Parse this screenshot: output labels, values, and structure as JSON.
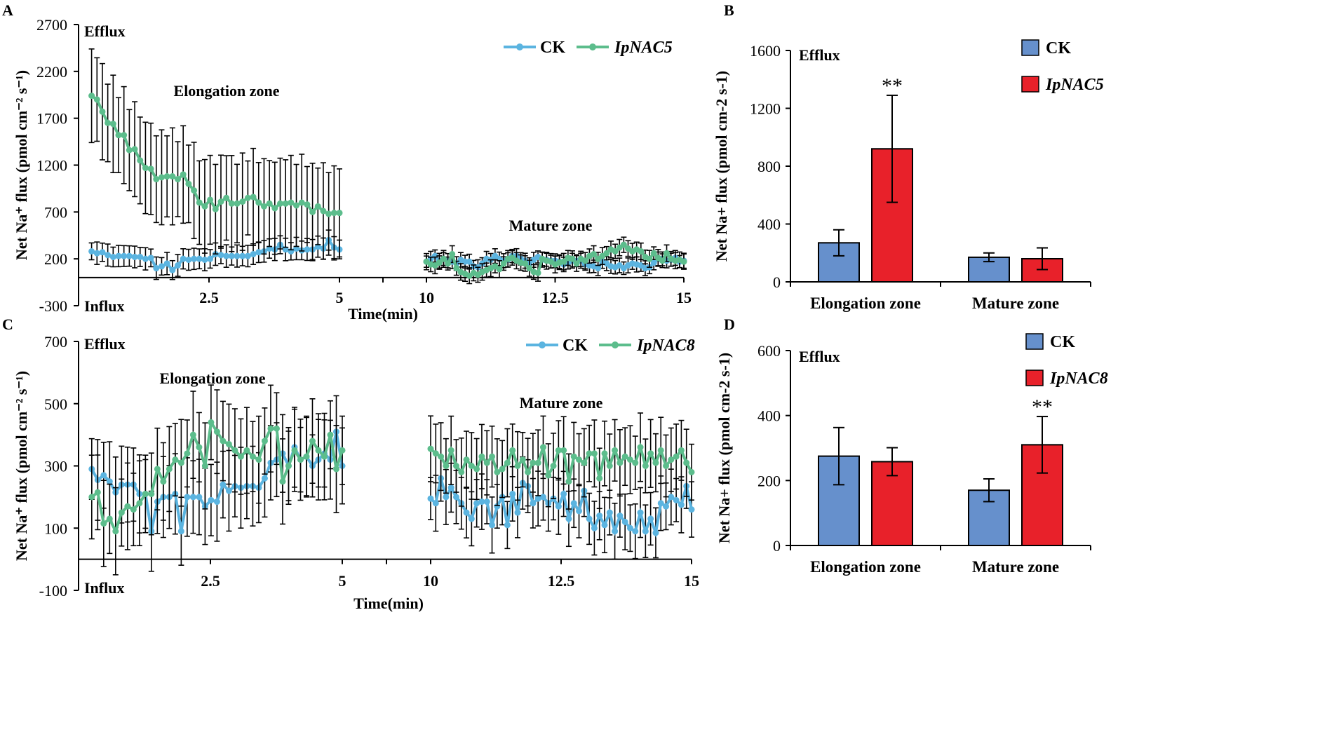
{
  "colors": {
    "ck": "#5bb4e0",
    "ipnac": "#5cbd8c",
    "bar_ck": "#6690cc",
    "bar_ipnac": "#e8212a"
  },
  "panel_labels": {
    "a": "A",
    "b": "B",
    "c": "C",
    "d": "D"
  },
  "chart_data": [
    {
      "id": "A",
      "type": "line",
      "title": "",
      "ylabel": "Net Na⁺ flux (pmol cm⁻² s⁻¹)",
      "xlabel": "Time(min)",
      "ylim": [
        -300,
        2700
      ],
      "yticks": [
        "2700",
        "2200",
        "1700",
        "1200",
        "700",
        "200",
        "-300"
      ],
      "ytick_values": [
        2700,
        2200,
        1700,
        1200,
        700,
        200,
        -300
      ],
      "xtick_labels": [
        "2.5",
        "5",
        "10",
        "12.5",
        "15"
      ],
      "xtick_values": [
        2.5,
        5,
        10,
        12.5,
        15
      ],
      "xrange": [
        0,
        15
      ],
      "efflux_label": "Efflux",
      "influx_label": "Influx",
      "annotations": [
        "Elongation zone",
        "Mature zone"
      ],
      "legend": [
        "CK",
        "IpNAC5"
      ],
      "series": [
        {
          "name": "CK",
          "elong_values": [
            280,
            260,
            270,
            240,
            220,
            230,
            230,
            230,
            220,
            220,
            200,
            210,
            100,
            120,
            150,
            80,
            130,
            200,
            190,
            200,
            200,
            190,
            200,
            250,
            240,
            230,
            230,
            230,
            230,
            230,
            250,
            270,
            280,
            310,
            300,
            350,
            300,
            280,
            310,
            290,
            300,
            300,
            330,
            310,
            400,
            320,
            300
          ],
          "elong_err": 120,
          "mature_values": [
            170,
            200,
            230,
            180,
            200,
            180,
            170,
            150,
            190,
            170,
            170,
            120,
            110,
            150,
            200,
            190,
            230,
            200,
            180,
            190,
            230,
            230,
            200,
            180,
            150,
            190,
            220,
            190,
            190,
            180,
            180,
            170,
            140,
            160,
            180,
            180,
            180,
            140,
            130,
            120,
            100,
            170,
            150,
            120,
            110,
            130,
            100,
            130,
            150,
            140,
            130,
            100,
            110,
            160,
            200,
            200,
            180,
            190,
            210,
            170,
            180
          ],
          "mature_err": 80
        },
        {
          "name": "IpNAC5",
          "elong_values": [
            1940,
            1900,
            1770,
            1650,
            1640,
            1520,
            1520,
            1360,
            1370,
            1250,
            1170,
            1160,
            1050,
            1070,
            1080,
            1080,
            1050,
            1100,
            1000,
            930,
            800,
            760,
            830,
            730,
            810,
            850,
            790,
            790,
            810,
            850,
            860,
            800,
            760,
            790,
            740,
            790,
            790,
            800,
            770,
            800,
            780,
            700,
            760,
            710,
            680,
            690,
            690
          ],
          "elong_err": 520,
          "mature_values": [
            170,
            140,
            130,
            160,
            200,
            150,
            250,
            100,
            60,
            40,
            20,
            50,
            30,
            60,
            80,
            100,
            120,
            90,
            150,
            200,
            210,
            180,
            160,
            150,
            100,
            60,
            50,
            200,
            180,
            170,
            140,
            160,
            170,
            210,
            200,
            150,
            200,
            180,
            230,
            250,
            200,
            230,
            260,
            300,
            280,
            320,
            350,
            310,
            280,
            300,
            280,
            220,
            200,
            260,
            210,
            180,
            260,
            200,
            180,
            190,
            170
          ],
          "mature_err": 90
        }
      ]
    },
    {
      "id": "B",
      "type": "bar",
      "ylabel": "Net Na+ flux (pmol cm-2 s-1)",
      "ylim": [
        0,
        1600
      ],
      "yticks": [
        "1600",
        "1200",
        "800",
        "400",
        "0"
      ],
      "ytick_values": [
        1600,
        1200,
        800,
        400,
        0
      ],
      "categories": [
        "Elongation zone",
        "Mature zone"
      ],
      "efflux_label": "Efflux",
      "legend": [
        "CK",
        "IpNAC5"
      ],
      "series": [
        {
          "name": "CK",
          "values": [
            270,
            170
          ],
          "errors": [
            90,
            30
          ]
        },
        {
          "name": "IpNAC5",
          "values": [
            920,
            160
          ],
          "errors": [
            370,
            75
          ]
        }
      ],
      "significance": [
        {
          "category": 0,
          "series": 1,
          "label": "**"
        }
      ]
    },
    {
      "id": "C",
      "type": "line",
      "ylabel": "Net Na⁺ flux (pmol cm⁻² s⁻¹)",
      "xlabel": "Time(min)",
      "ylim": [
        -100,
        700
      ],
      "yticks": [
        "700",
        "500",
        "300",
        "100",
        "-100"
      ],
      "ytick_values": [
        700,
        500,
        300,
        100,
        -100
      ],
      "xtick_labels": [
        "2.5",
        "5",
        "10",
        "12.5",
        "15"
      ],
      "xtick_values": [
        2.5,
        5,
        10,
        12.5,
        15
      ],
      "xrange": [
        0,
        15
      ],
      "efflux_label": "Efflux",
      "influx_label": "Influx",
      "annotations": [
        "Elongation zone",
        "Mature zone"
      ],
      "legend": [
        "CK",
        "IpNAC8"
      ],
      "series": [
        {
          "name": "CK",
          "elong_values": [
            290,
            255,
            270,
            250,
            215,
            240,
            240,
            240,
            210,
            210,
            90,
            185,
            200,
            200,
            210,
            90,
            200,
            200,
            200,
            170,
            190,
            185,
            240,
            220,
            235,
            230,
            235,
            235,
            230,
            260,
            310,
            320,
            340,
            300,
            360,
            320,
            330,
            300,
            320,
            340,
            320,
            410,
            300
          ],
          "elong_err": 130,
          "mature_values": [
            195,
            180,
            260,
            200,
            230,
            200,
            180,
            150,
            130,
            180,
            185,
            185,
            110,
            170,
            200,
            110,
            210,
            150,
            245,
            235,
            180,
            195,
            200,
            180,
            195,
            170,
            210,
            130,
            180,
            155,
            220,
            130,
            100,
            140,
            110,
            150,
            90,
            140,
            120,
            100,
            90,
            150,
            90,
            130,
            85,
            180,
            170,
            200,
            190,
            175,
            235,
            160
          ],
          "mature_err": 90
        },
        {
          "name": "IpNAC8",
          "elong_values": [
            200,
            215,
            115,
            130,
            90,
            150,
            170,
            160,
            180,
            210,
            210,
            290,
            250,
            290,
            320,
            310,
            340,
            400,
            360,
            300,
            440,
            410,
            380,
            370,
            350,
            330,
            350,
            330,
            320,
            380,
            420,
            420,
            250,
            300,
            350,
            320,
            330,
            380,
            350,
            330,
            400,
            290,
            350
          ],
          "elong_err": 140,
          "mature_values": [
            355,
            340,
            330,
            300,
            350,
            300,
            280,
            320,
            300,
            290,
            330,
            310,
            330,
            280,
            290,
            310,
            350,
            300,
            320,
            280,
            310,
            310,
            360,
            270,
            300,
            350,
            350,
            250,
            330,
            320,
            310,
            340,
            340,
            260,
            340,
            300,
            350,
            310,
            330,
            320,
            310,
            360,
            300,
            340,
            310,
            350,
            300,
            320,
            330,
            350,
            310,
            280
          ],
          "mature_err": 110
        }
      ]
    },
    {
      "id": "D",
      "type": "bar",
      "ylabel": "Net Na+ flux (pmol cm-2 s-1)",
      "ylim": [
        0,
        600
      ],
      "yticks": [
        "600",
        "400",
        "200",
        "0"
      ],
      "ytick_values": [
        600,
        400,
        200,
        0
      ],
      "categories": [
        "Elongation zone",
        "Mature zone"
      ],
      "efflux_label": "Efflux",
      "legend": [
        "CK",
        "IpNAC8"
      ],
      "series": [
        {
          "name": "CK",
          "values": [
            275,
            170
          ],
          "errors": [
            88,
            35
          ]
        },
        {
          "name": "IpNAC8",
          "values": [
            258,
            310
          ],
          "errors": [
            43,
            87
          ]
        }
      ],
      "significance": [
        {
          "category": 1,
          "series": 1,
          "label": "**"
        }
      ]
    }
  ]
}
